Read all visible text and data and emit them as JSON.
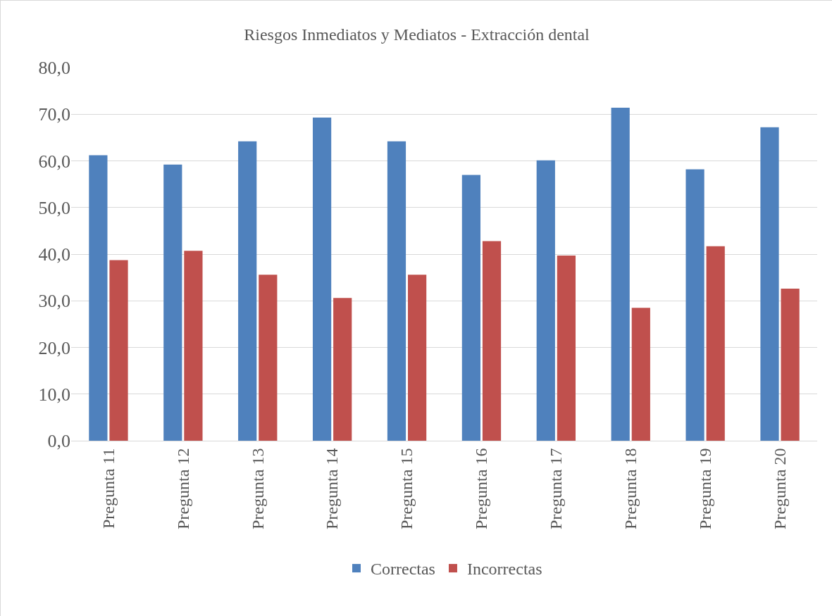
{
  "chart_data": {
    "type": "bar",
    "title": "Riesgos Inmediatos y Mediatos - Extracción dental",
    "categories": [
      "Pregunta 11",
      "Pregunta 12",
      "Pregunta 13",
      "Pregunta 14",
      "Pregunta 15",
      "Pregunta 16",
      "Pregunta 17",
      "Pregunta 18",
      "Pregunta 19",
      "Pregunta 20"
    ],
    "series": [
      {
        "name": "Correctas",
        "color": "#4f81bd",
        "values": [
          61.2,
          59.2,
          64.2,
          69.3,
          64.2,
          57.0,
          60.1,
          71.4,
          58.2,
          67.2
        ]
      },
      {
        "name": "Incorrectas",
        "color": "#c0504d",
        "values": [
          38.7,
          40.7,
          35.6,
          30.6,
          35.6,
          42.8,
          39.7,
          28.5,
          41.7,
          32.6
        ]
      }
    ],
    "ylim": [
      0,
      80
    ],
    "yticks": [
      {
        "value": 0,
        "label": "0,0"
      },
      {
        "value": 10,
        "label": "10,0"
      },
      {
        "value": 20,
        "label": "20,0"
      },
      {
        "value": 30,
        "label": "30,0"
      },
      {
        "value": 40,
        "label": "40,0"
      },
      {
        "value": 50,
        "label": "50,0"
      },
      {
        "value": 60,
        "label": "60,0"
      },
      {
        "value": 70,
        "label": "70,0"
      },
      {
        "value": 80,
        "label": "80,0"
      }
    ],
    "grid": "y",
    "legend": "bottom"
  }
}
